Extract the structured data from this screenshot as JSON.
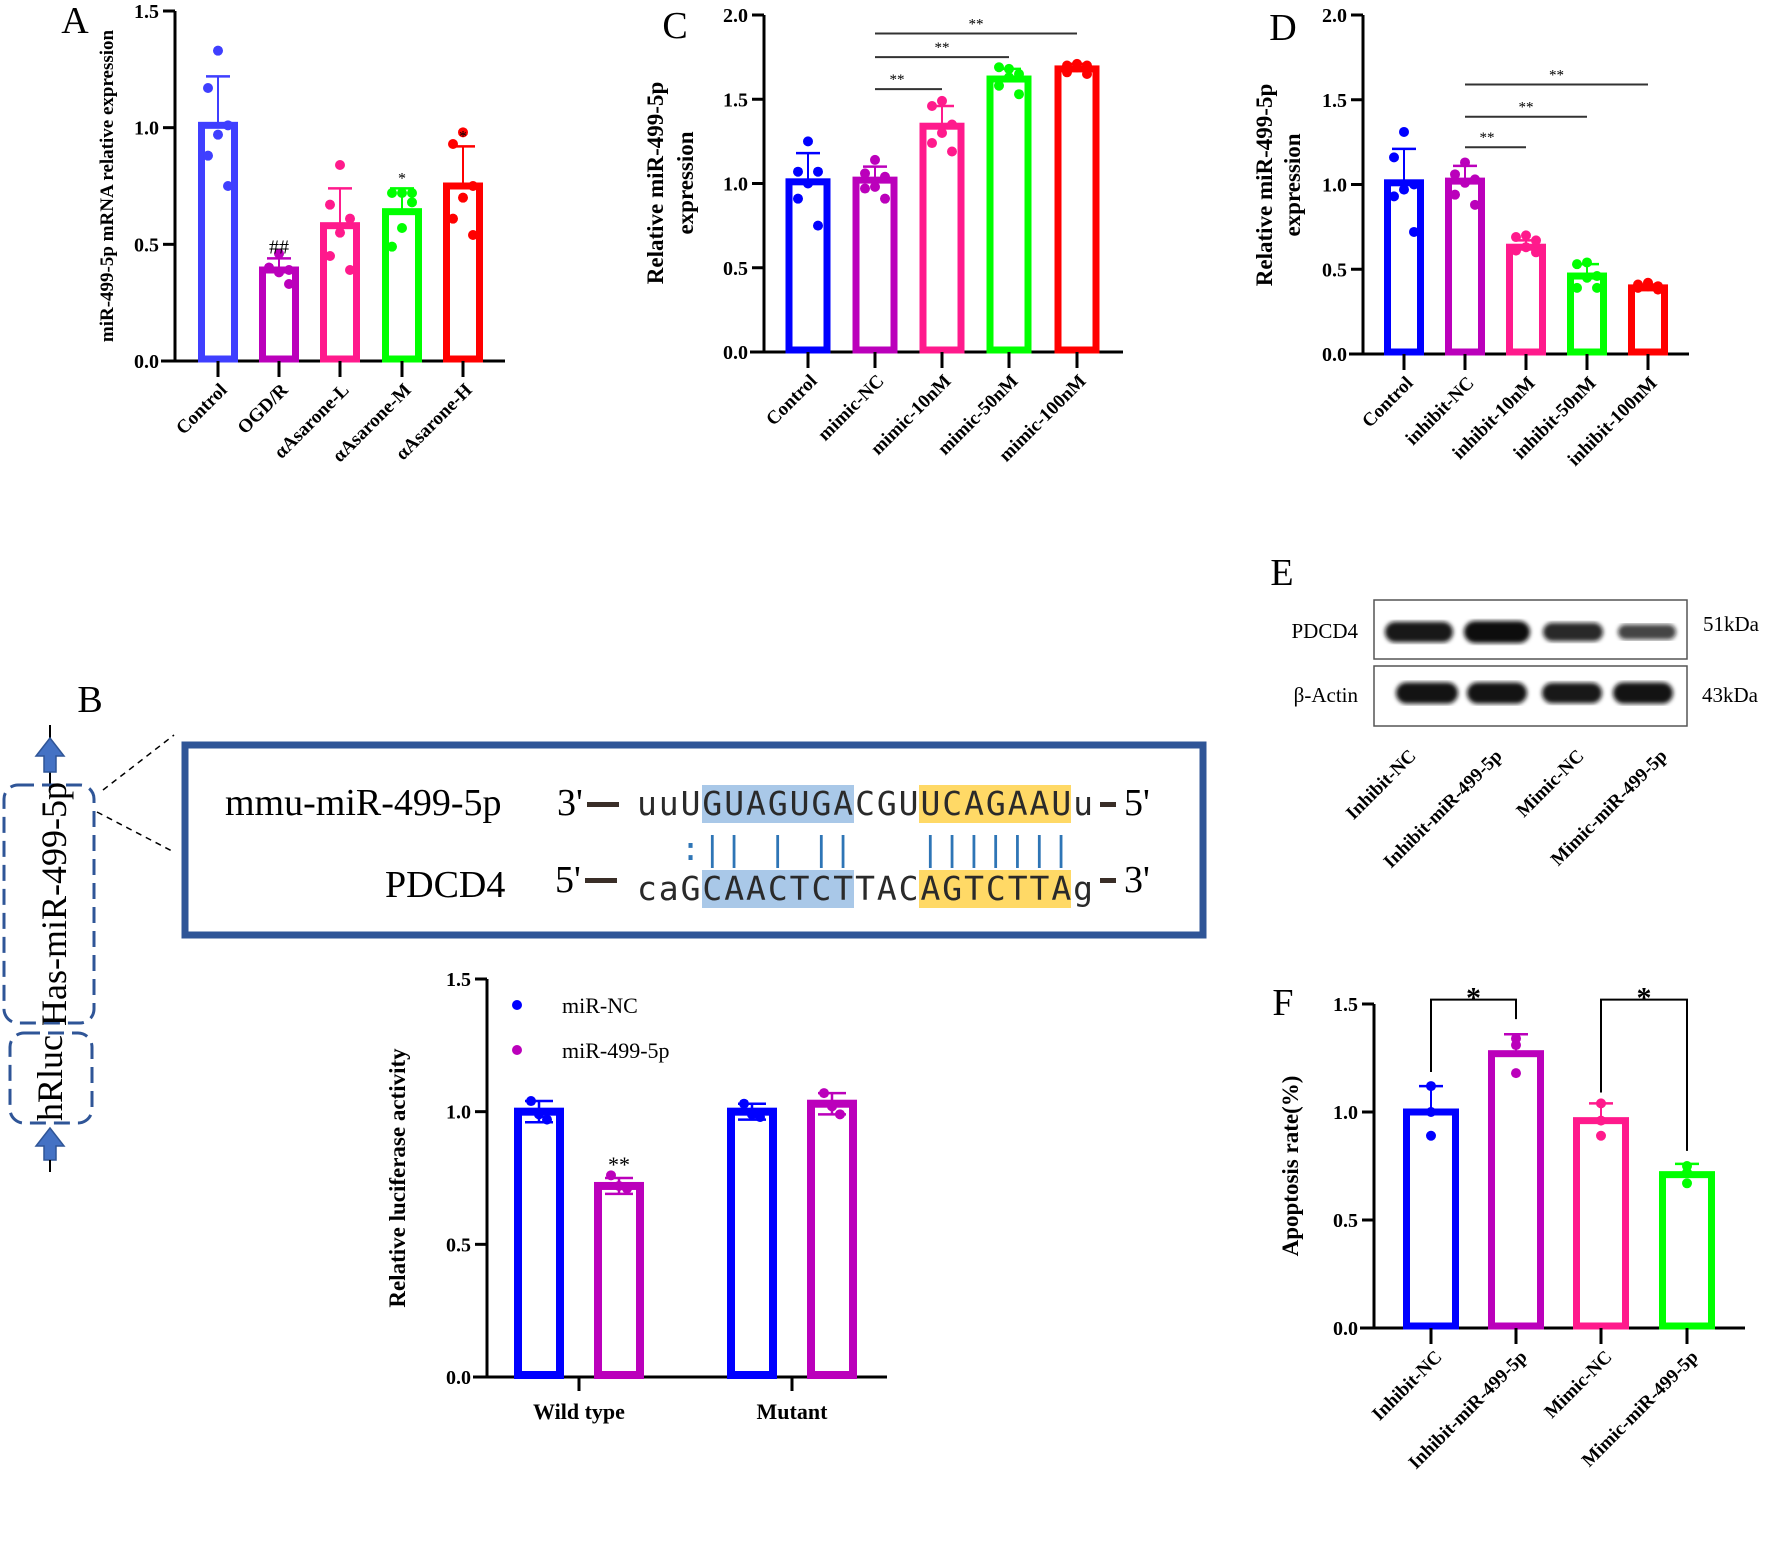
{
  "panels": {
    "A": "A",
    "B": "B",
    "C": "C",
    "D": "D",
    "E": "E",
    "F": "F"
  },
  "colors": {
    "blue": "#0000ff",
    "lightblue": "#3f3fff",
    "purple": "#bb00bb",
    "pink": "#ff1a8c",
    "green": "#00ff00",
    "red": "#ff0000",
    "frame": "#2f5597",
    "seq_blue_hl": "#a9c8e8",
    "seq_yellow_hl": "#ffd966"
  },
  "construct": {
    "upper_box": "Has-miR-499-5p",
    "lower_box": "hRluc"
  },
  "alignment": {
    "mirna_label": "mmu-miR-499-5p",
    "mirna_left": "3'",
    "mirna_seq": "uuUGUAGUGACGUUCAGAAUu",
    "mirna_right": "5'",
    "pairing": "  :|| | ||   |||||||",
    "target_label": "PDCD4",
    "target_left": "5'",
    "target_seq": "caGCAACTCTTACAGTCTTAg",
    "target_right": "3'"
  },
  "western_blot": {
    "rows": [
      {
        "label": "PDCD4",
        "size": "51kDa",
        "intensity": [
          0.9,
          1.0,
          0.75,
          0.5
        ]
      },
      {
        "label": "β-Actin",
        "size": "43kDa",
        "intensity": [
          0.95,
          0.95,
          0.9,
          0.95
        ]
      }
    ],
    "lanes": [
      "Inhibit-NC",
      "Inhibit-miR-499-5p",
      "Mimic-NC",
      "Mimic-miR-499-5p"
    ]
  },
  "chart_data": [
    {
      "id": "A",
      "type": "bar",
      "title": "",
      "xlabel": "",
      "ylabel": "miR-499-5p mRNA relative expression",
      "ylim": [
        0,
        1.5
      ],
      "yticks": [
        "0.0",
        "0.5",
        "1.0",
        "1.5"
      ],
      "categories": [
        "Control",
        "OGD/R",
        "αAsarone-L",
        "αAsarone-M",
        "αAsarone-H"
      ],
      "colors": [
        "#3f3fff",
        "#bb00bb",
        "#ff1a8c",
        "#00ff00",
        "#ff0000"
      ],
      "values": [
        1.01,
        0.39,
        0.58,
        0.64,
        0.75
      ],
      "sd": [
        0.21,
        0.05,
        0.16,
        0.1,
        0.17
      ],
      "points": [
        [
          1.33,
          1.17,
          1.01,
          0.97,
          0.88,
          0.75
        ],
        [
          0.46,
          0.4,
          0.39,
          0.38,
          0.4,
          0.33
        ],
        [
          0.84,
          0.67,
          0.61,
          0.55,
          0.45,
          0.39
        ],
        [
          0.72,
          0.72,
          0.68,
          0.57,
          0.49,
          0.72
        ],
        [
          0.98,
          0.93,
          0.75,
          0.7,
          0.61,
          0.54
        ]
      ],
      "annotations": [
        "",
        "##",
        "",
        "*",
        "*"
      ],
      "brackets": []
    },
    {
      "id": "C",
      "type": "bar",
      "title": "",
      "xlabel": "",
      "ylabel": [
        "Relative miR-499-5p",
        "expression"
      ],
      "ylim": [
        0,
        2.0
      ],
      "yticks": [
        "0.0",
        "0.5",
        "1.0",
        "1.5",
        "2.0"
      ],
      "categories": [
        "Control",
        "mimic-NC",
        "mimic-10nM",
        "mimic-50nM",
        "mimic-100nM"
      ],
      "colors": [
        "#0000ff",
        "#bb00bb",
        "#ff1a8c",
        "#00ff00",
        "#ff0000"
      ],
      "values": [
        1.01,
        1.02,
        1.34,
        1.62,
        1.68
      ],
      "sd": [
        0.17,
        0.08,
        0.12,
        0.06,
        0.03
      ],
      "points": [
        [
          1.25,
          1.07,
          1.07,
          1.0,
          0.91,
          0.75
        ],
        [
          1.14,
          1.06,
          1.04,
          0.98,
          0.97,
          0.91
        ],
        [
          1.49,
          1.46,
          1.35,
          1.3,
          1.24,
          1.19
        ],
        [
          1.68,
          1.69,
          1.65,
          1.63,
          1.58,
          1.53
        ],
        [
          1.71,
          1.7,
          1.7,
          1.69,
          1.66,
          1.65
        ]
      ],
      "annotations": [
        "",
        "",
        "",
        "",
        ""
      ],
      "brackets": [
        {
          "from": 1,
          "to": 2,
          "y": 1.56,
          "label": "**",
          "style": "line"
        },
        {
          "from": 1,
          "to": 3,
          "y": 1.75,
          "label": "**",
          "style": "line"
        },
        {
          "from": 1,
          "to": 4,
          "y": 1.89,
          "label": "**",
          "style": "line"
        }
      ]
    },
    {
      "id": "D",
      "type": "bar",
      "title": "",
      "xlabel": "",
      "ylabel": [
        "Relative miR-499-5p",
        "expression"
      ],
      "ylim": [
        0,
        2.0
      ],
      "yticks": [
        "0.0",
        "0.5",
        "1.0",
        "1.5",
        "2.0"
      ],
      "categories": [
        "Control",
        "inhibit-NC",
        "inhibit-10nM",
        "inhibit-50nM",
        "inhibit-100nM"
      ],
      "colors": [
        "#0000ff",
        "#bb00bb",
        "#ff1a8c",
        "#00ff00",
        "#ff0000"
      ],
      "values": [
        1.01,
        1.02,
        0.63,
        0.46,
        0.39
      ],
      "sd": [
        0.2,
        0.09,
        0.04,
        0.07,
        0.02
      ],
      "points": [
        [
          1.31,
          1.16,
          1.0,
          0.97,
          0.93,
          0.72
        ],
        [
          1.13,
          1.06,
          1.03,
          1.01,
          0.94,
          0.88
        ],
        [
          0.7,
          0.69,
          0.67,
          0.63,
          0.61,
          0.6
        ],
        [
          0.54,
          0.53,
          0.46,
          0.45,
          0.39,
          0.39
        ],
        [
          0.42,
          0.41,
          0.4,
          0.4,
          0.39,
          0.38
        ]
      ],
      "annotations": [
        "",
        "",
        "",
        "",
        ""
      ],
      "brackets": [
        {
          "from": 1,
          "to": 2,
          "y": 1.22,
          "label": "**",
          "style": "line"
        },
        {
          "from": 1,
          "to": 3,
          "y": 1.4,
          "label": "**",
          "style": "line"
        },
        {
          "from": 1,
          "to": 4,
          "y": 1.59,
          "label": "**",
          "style": "line"
        }
      ]
    },
    {
      "id": "B",
      "type": "bar",
      "title": "",
      "xlabel": "",
      "ylabel": "Relative luciferase activity",
      "ylim": [
        0,
        1.5
      ],
      "yticks": [
        "0.0",
        "0.5",
        "1.0",
        "1.5"
      ],
      "categories": [
        "Wild type",
        "Mutant"
      ],
      "legend": {
        "position": "top-left",
        "entries": [
          {
            "name": "miR-NC",
            "color": "#0000ff"
          },
          {
            "name": "miR-499-5p",
            "color": "#bb00bb"
          }
        ]
      },
      "series": [
        {
          "name": "miR-NC",
          "color": "#0000ff",
          "values": [
            1.0,
            1.0
          ],
          "sd": [
            0.04,
            0.03
          ],
          "points": [
            [
              1.04,
              0.99,
              0.97
            ],
            [
              1.03,
              0.99,
              0.98
            ]
          ]
        },
        {
          "name": "miR-499-5p",
          "color": "#bb00bb",
          "values": [
            0.72,
            1.03
          ],
          "sd": [
            0.03,
            0.04
          ],
          "points": [
            [
              0.76,
              0.72,
              0.71
            ],
            [
              1.07,
              1.02,
              0.99
            ]
          ]
        }
      ],
      "annotations": [
        [
          "",
          ""
        ],
        [
          "**",
          ""
        ]
      ]
    },
    {
      "id": "F",
      "type": "bar",
      "title": "",
      "xlabel": "",
      "ylabel": "Apoptosis rate(%)",
      "ylim": [
        0,
        1.5
      ],
      "yticks": [
        "0.0",
        "0.5",
        "1.0",
        "1.5"
      ],
      "categories": [
        "Inhibit-NC",
        "Inhibit-miR-499-5p",
        "Mimic-NC",
        "Mimic-miR-499-5p"
      ],
      "colors": [
        "#0000ff",
        "#bb00bb",
        "#ff1a8c",
        "#00ff00"
      ],
      "values": [
        1.0,
        1.27,
        0.96,
        0.71
      ],
      "sd": [
        0.12,
        0.09,
        0.08,
        0.05
      ],
      "points": [
        [
          1.12,
          1.0,
          0.89
        ],
        [
          1.34,
          1.31,
          1.18
        ],
        [
          1.04,
          0.96,
          0.89
        ],
        [
          0.75,
          0.72,
          0.67
        ]
      ],
      "annotations": [
        "",
        "",
        "",
        ""
      ],
      "brackets": [
        {
          "from": 0,
          "to": 1,
          "y": 1.52,
          "left_end": 1.185,
          "right_end": 1.43,
          "label": "*",
          "style": "bracket"
        },
        {
          "from": 2,
          "to": 3,
          "y": 1.52,
          "left_end": 1.09,
          "right_end": 0.82,
          "label": "*",
          "style": "bracket"
        }
      ]
    }
  ]
}
